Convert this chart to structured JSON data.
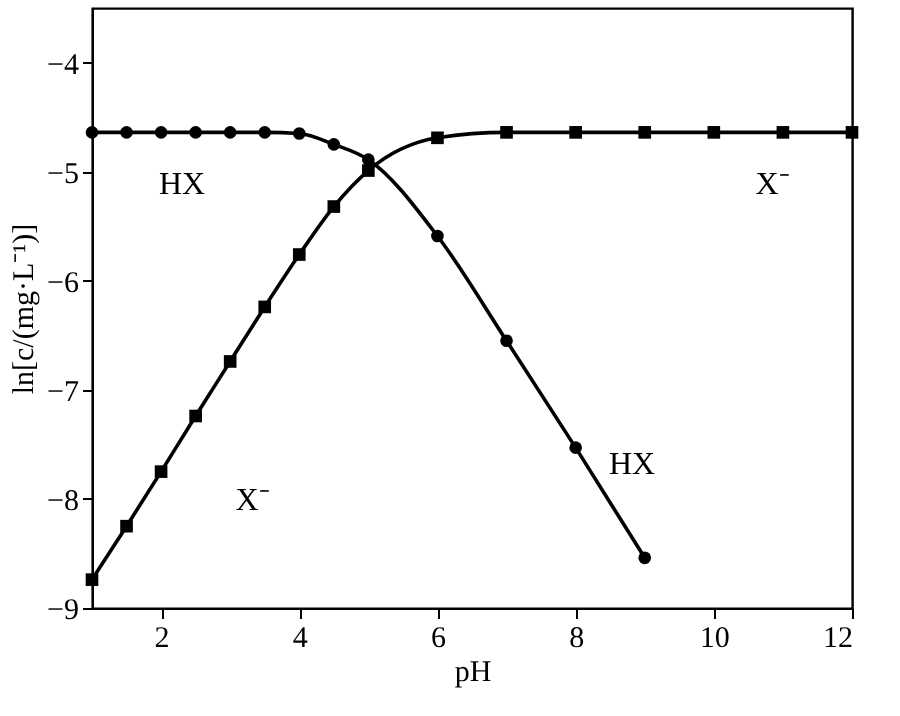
{
  "chart_data": {
    "type": "line",
    "xlabel": "pH",
    "ylabel": "ln[c/(mg·L⁻¹)]",
    "xlim": [
      1,
      12
    ],
    "xticks": [
      2,
      4,
      6,
      8,
      10,
      12
    ],
    "ylim": [
      -9,
      -3.5
    ],
    "yticks": [
      -4,
      -5,
      -6,
      -7,
      -8,
      -9
    ],
    "grid": false,
    "line_style": "solid",
    "series": [
      {
        "color": "#000000",
        "marker": "circle",
        "x": [
          1,
          1.5,
          2,
          2.5,
          3,
          3.5,
          4,
          4.5,
          5,
          6,
          7,
          8,
          9
        ],
        "values": [
          -4.64,
          -4.64,
          -4.64,
          -4.64,
          -4.64,
          -4.64,
          -4.65,
          -4.75,
          -4.89,
          -5.59,
          -6.55,
          -7.53,
          -8.54
        ]
      },
      {
        "color": "#000000",
        "marker": "square",
        "x": [
          1,
          1.5,
          2,
          2.5,
          3,
          3.5,
          4,
          4.5,
          5,
          6,
          7,
          8,
          9,
          10,
          11,
          12
        ],
        "values": [
          -8.74,
          -8.25,
          -7.75,
          -7.24,
          -6.74,
          -6.24,
          -5.76,
          -5.32,
          -4.99,
          -4.69,
          -4.64,
          -4.64,
          -4.64,
          -4.64,
          -4.64,
          -4.64
        ]
      }
    ],
    "annotations": [
      "HX",
      "X⁻",
      "X⁻",
      "HX"
    ]
  }
}
